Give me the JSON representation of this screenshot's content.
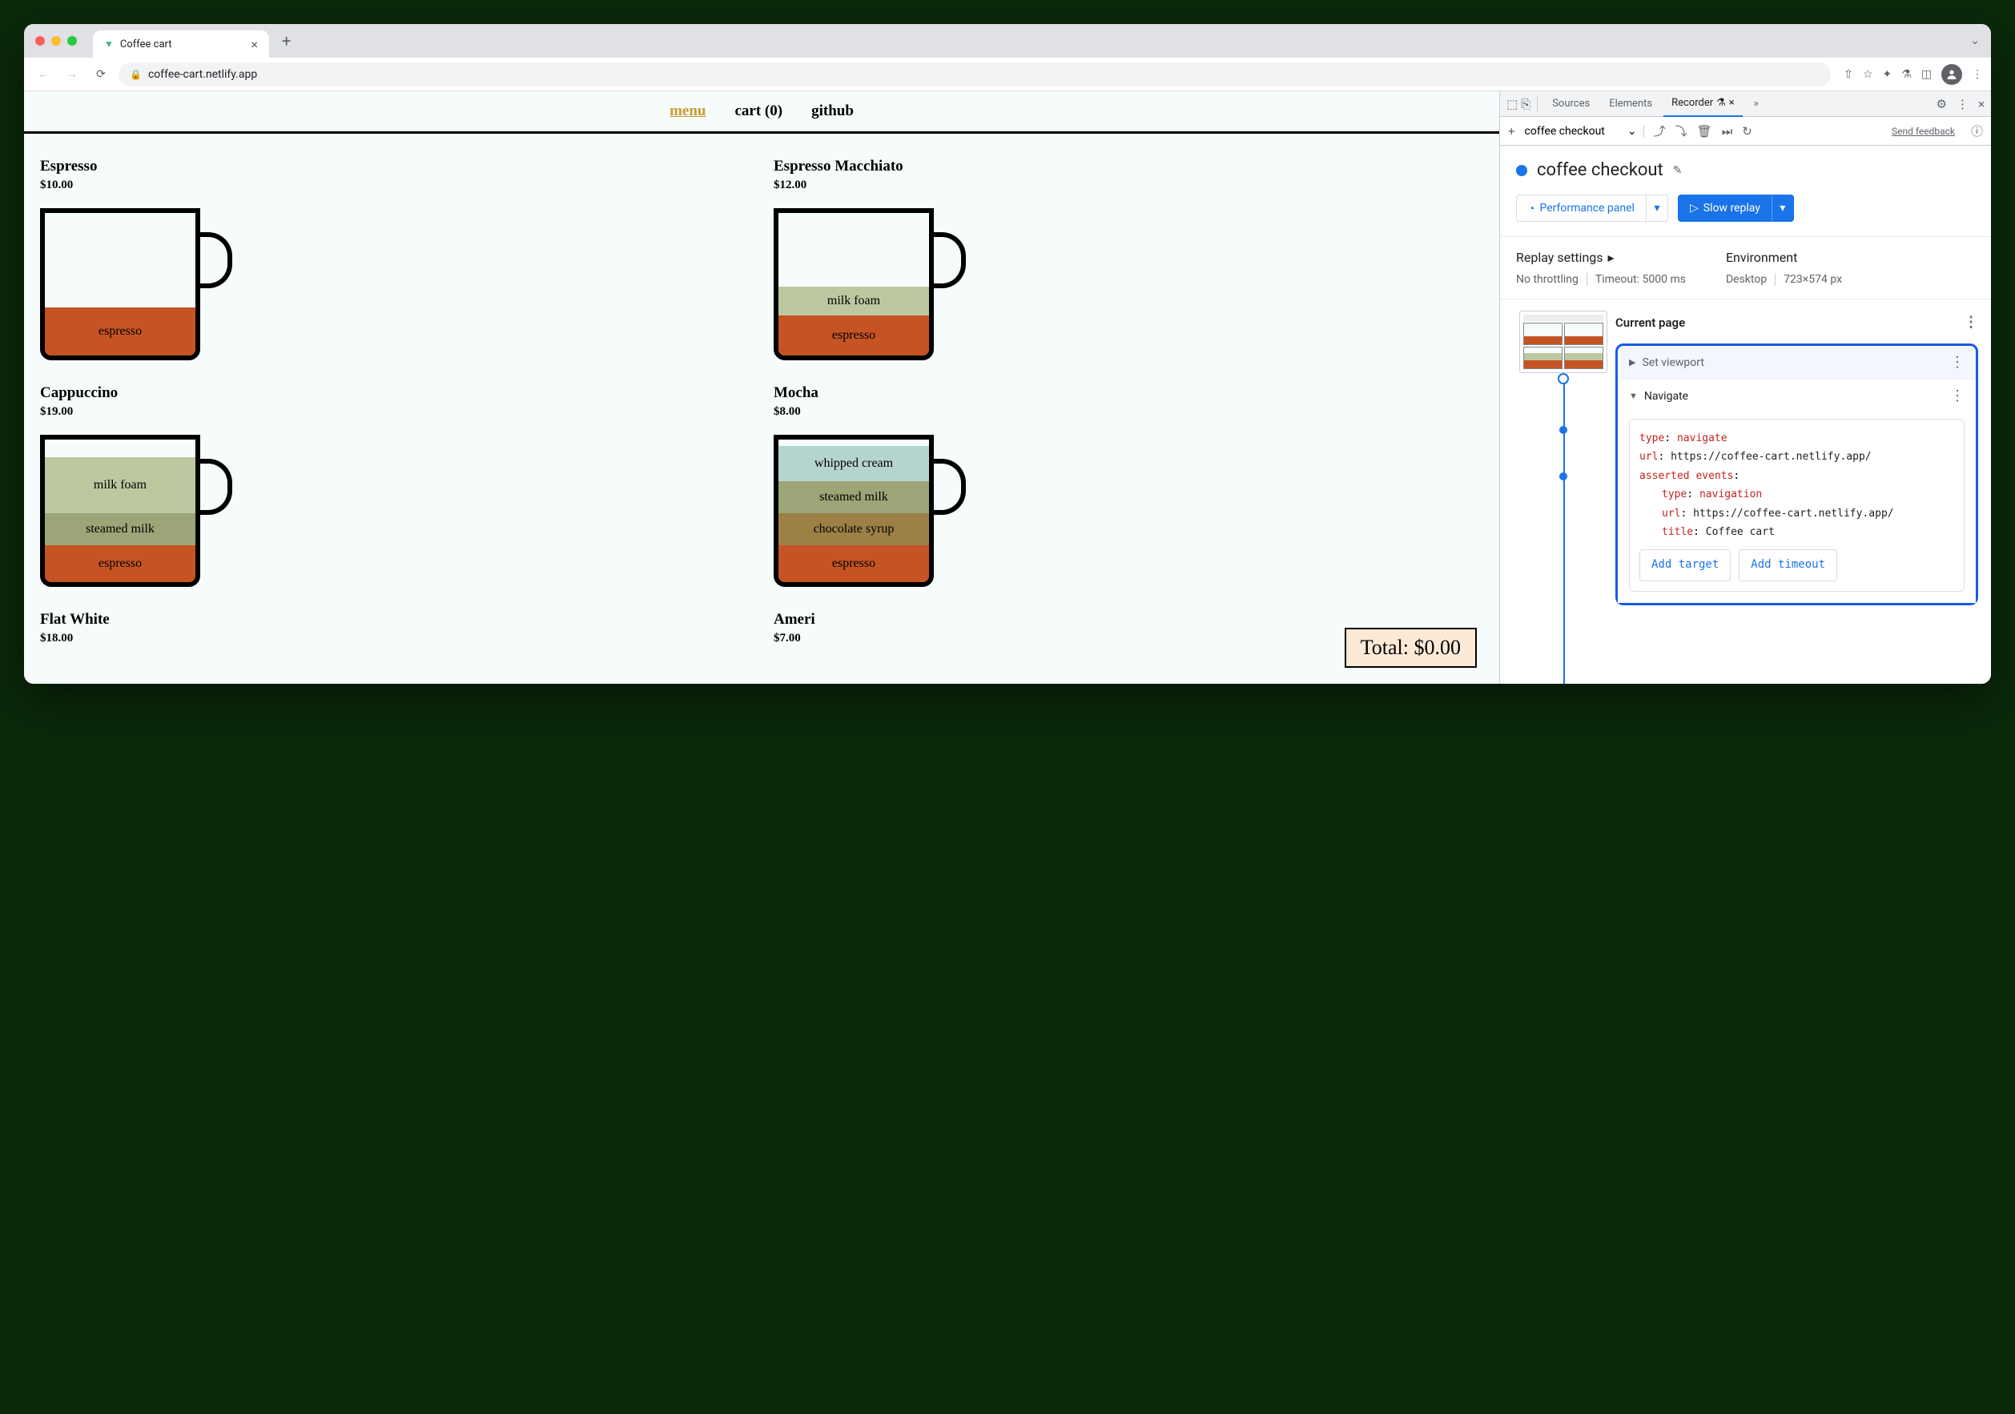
{
  "browser": {
    "tab": {
      "title": "Coffee cart"
    },
    "url": "coffee-cart.netlify.app"
  },
  "page": {
    "nav": {
      "menu": "menu",
      "cart": "cart (0)",
      "github": "github"
    },
    "products": [
      {
        "name": "Espresso",
        "price": "$10.00",
        "layers": [
          {
            "label": "espresso",
            "color": "#c65324",
            "height": 60,
            "text_color": "#000"
          }
        ]
      },
      {
        "name": "Espresso Macchiato",
        "price": "$12.00",
        "layers": [
          {
            "label": "milk foam",
            "color": "#bcc89f",
            "height": 36,
            "text_color": "#000"
          },
          {
            "label": "espresso",
            "color": "#c65324",
            "height": 50,
            "text_color": "#000"
          }
        ]
      },
      {
        "name": "Cappuccino",
        "price": "$19.00",
        "layers": [
          {
            "label": "milk foam",
            "color": "#bcc89f",
            "height": 70,
            "text_color": "#000"
          },
          {
            "label": "steamed milk",
            "color": "#9ba577",
            "height": 40,
            "text_color": "#000"
          },
          {
            "label": "espresso",
            "color": "#c65324",
            "height": 46,
            "text_color": "#000"
          }
        ]
      },
      {
        "name": "Mocha",
        "price": "$8.00",
        "layers": [
          {
            "label": "whipped cream",
            "color": "#b6d4cf",
            "height": 44,
            "text_color": "#000"
          },
          {
            "label": "steamed milk",
            "color": "#9ba577",
            "height": 40,
            "text_color": "#000"
          },
          {
            "label": "chocolate syrup",
            "color": "#9d8046",
            "height": 40,
            "text_color": "#000"
          },
          {
            "label": "espresso",
            "color": "#c65324",
            "height": 46,
            "text_color": "#000"
          }
        ]
      },
      {
        "name": "Flat White",
        "price": "$18.00",
        "layers": []
      },
      {
        "name": "Ameri",
        "price": "$7.00",
        "layers": []
      }
    ],
    "total": "Total: $0.00"
  },
  "devtools": {
    "tabs": {
      "sources": "Sources",
      "elements": "Elements",
      "recorder": "Recorder"
    },
    "toolbar": {
      "recording_name": "coffee checkout",
      "feedback": "Send feedback"
    },
    "recording": {
      "title": "coffee checkout",
      "perf_button": "Performance panel",
      "replay_button": "Slow replay"
    },
    "settings": {
      "replay_heading": "Replay settings",
      "throttling": "No throttling",
      "timeout": "Timeout: 5000 ms",
      "env_heading": "Environment",
      "env_device": "Desktop",
      "env_size": "723×574 px"
    },
    "steps": {
      "current": "Current page",
      "set_viewport": "Set viewport",
      "navigate": "Navigate",
      "code": {
        "type_k": "type",
        "type_v": "navigate",
        "url_k": "url",
        "url_v": "https://coffee-cart.netlify.app/",
        "asserted_k": "asserted events",
        "nav_type_k": "type",
        "nav_type_v": "navigation",
        "nav_url_k": "url",
        "nav_url_v": "https://coffee-cart.netlify.app/",
        "title_k": "title",
        "title_v": "Coffee cart"
      },
      "add_target": "Add target",
      "add_timeout": "Add timeout"
    }
  }
}
